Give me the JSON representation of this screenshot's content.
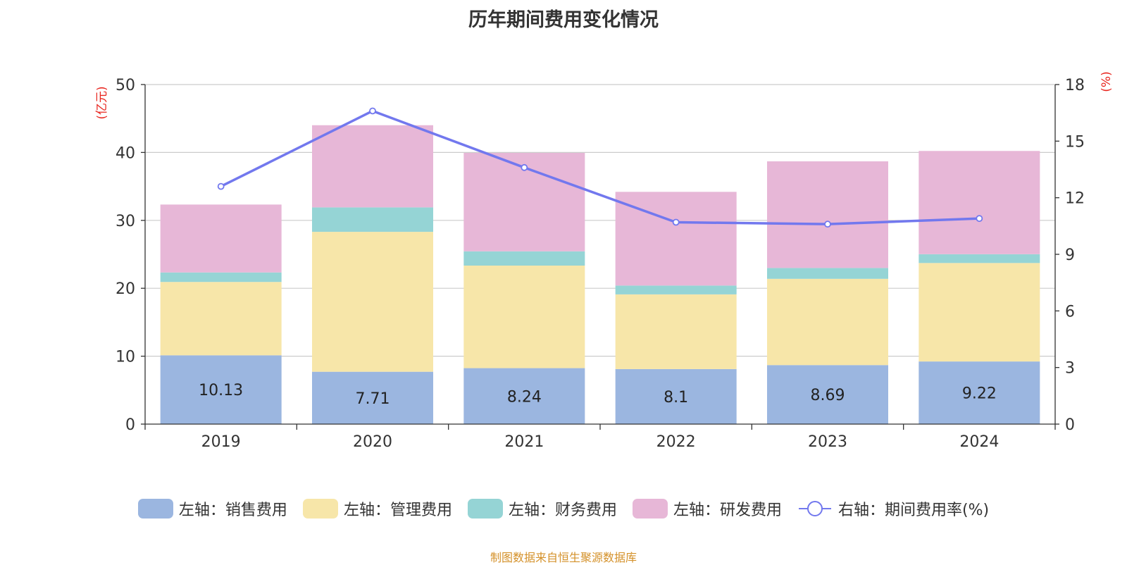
{
  "chart_data": {
    "type": "bar",
    "stacked": true,
    "title": "历年期间费用变化情况",
    "categories": [
      "2019",
      "2020",
      "2021",
      "2022",
      "2023",
      "2024"
    ],
    "left_axis": {
      "unit": "(亿元)",
      "range": [
        0,
        50
      ],
      "ticks": [
        "0",
        "10",
        "20",
        "30",
        "40",
        "50"
      ]
    },
    "right_axis": {
      "unit": "(%)",
      "range": [
        0,
        18
      ],
      "ticks": [
        "0",
        "3",
        "6",
        "9",
        "12",
        "15",
        "18"
      ]
    },
    "series": [
      {
        "name": "左轴：销售费用",
        "type": "bar",
        "axis": "left",
        "color": "#9bb6e0",
        "values": [
          10.13,
          7.71,
          8.24,
          8.1,
          8.69,
          9.22
        ],
        "labels": [
          "10.13",
          "7.71",
          "8.24",
          "8.1",
          "8.69",
          "9.22"
        ]
      },
      {
        "name": "左轴：管理费用",
        "type": "bar",
        "axis": "left",
        "color": "#f7e6a9",
        "values": [
          10.8,
          20.6,
          15.1,
          11.0,
          12.7,
          14.5
        ]
      },
      {
        "name": "左轴：财务费用",
        "type": "bar",
        "axis": "left",
        "color": "#95d4d5",
        "values": [
          1.4,
          3.6,
          2.1,
          1.3,
          1.6,
          1.3
        ]
      },
      {
        "name": "左轴：研发费用",
        "type": "bar",
        "axis": "left",
        "color": "#e7b7d7",
        "values": [
          10.0,
          12.1,
          14.5,
          13.8,
          15.7,
          15.2
        ]
      },
      {
        "name": "右轴：期间费用率(%)",
        "type": "line",
        "axis": "right",
        "color": "#7278ee",
        "values": [
          12.6,
          16.6,
          13.6,
          10.7,
          10.6,
          10.9
        ]
      }
    ],
    "grid": true,
    "legend_position": "bottom"
  },
  "footer": {
    "source": "制图数据来自恒生聚源数据库"
  }
}
